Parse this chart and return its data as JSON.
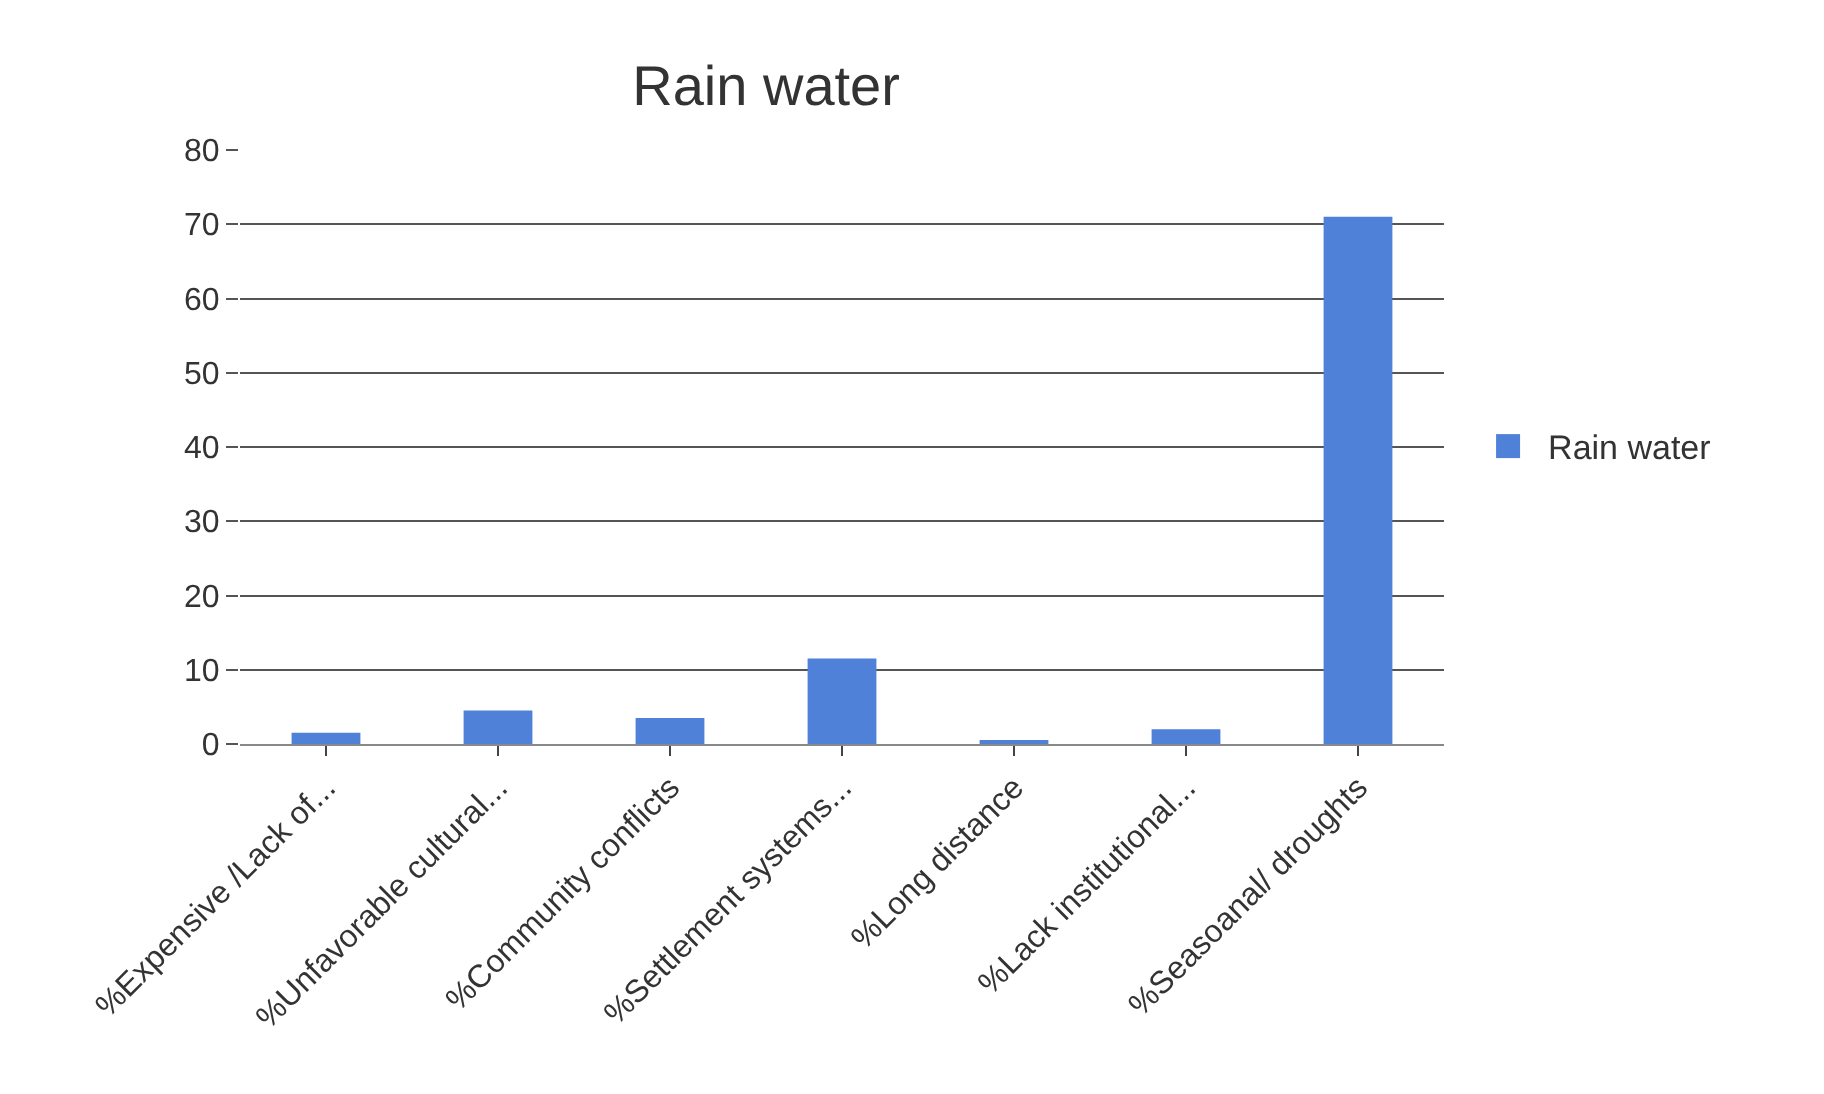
{
  "chart_data": {
    "type": "bar",
    "title": "Rain water",
    "categories": [
      "%Expensive /Lack of...",
      "%Unfavorable cultural...",
      "%Community conflicts",
      "%Settlement systems...",
      "%Long distance",
      "%Lack institutional...",
      "%Seasoanal/ droughts"
    ],
    "series": [
      {
        "name": "Rain water",
        "color": "#4f81d9",
        "values": [
          1.5,
          4.5,
          3.5,
          11.5,
          0.3,
          2,
          71
        ]
      }
    ],
    "ylim": [
      0,
      80
    ],
    "yticks": [
      0,
      10,
      20,
      30,
      40,
      50,
      60,
      70,
      80
    ],
    "grid": "y",
    "legend": "right"
  }
}
